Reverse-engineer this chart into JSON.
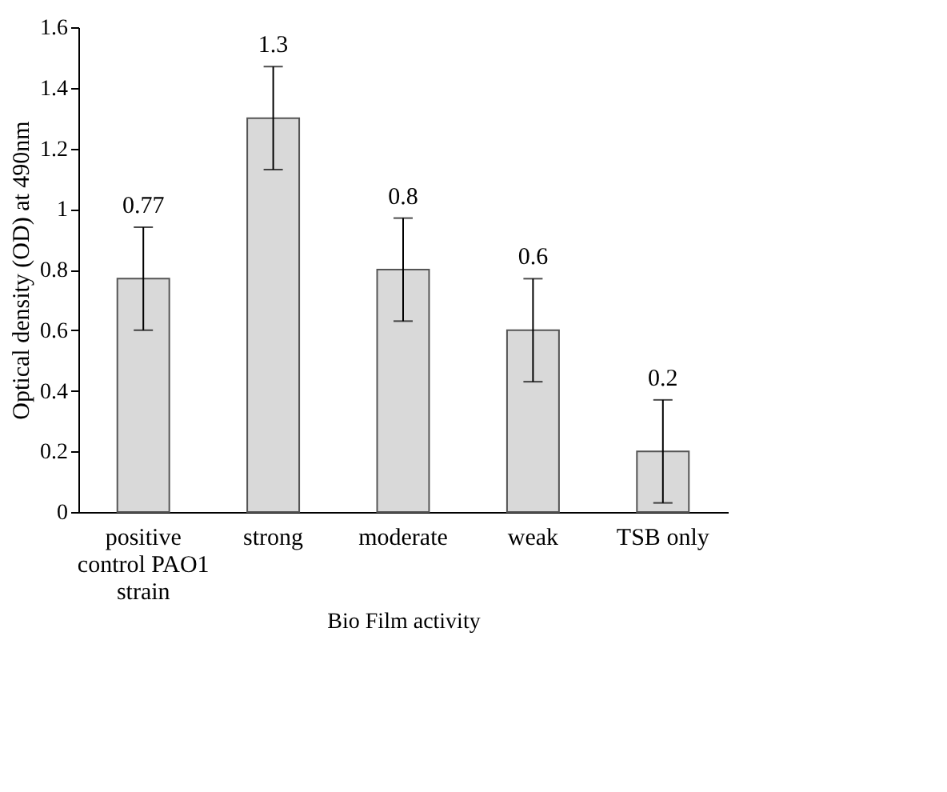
{
  "chart_data": {
    "type": "bar",
    "xlabel": "Bio Film activity",
    "ylabel": "Optical density (OD) at 490nm",
    "categories": [
      "positive control PAO1 strain",
      "strong",
      "moderate",
      "weak",
      "TSB only"
    ],
    "values": [
      0.77,
      1.3,
      0.8,
      0.6,
      0.2
    ],
    "errors": [
      0.17,
      0.17,
      0.17,
      0.17,
      0.17
    ],
    "color": "#d9d9d9",
    "ylim": [
      0,
      1.6
    ],
    "yticks": [
      0,
      0.2,
      0.4,
      0.6,
      0.8,
      1,
      1.2,
      1.4,
      1.6
    ],
    "data_labels": true,
    "grid": false
  }
}
